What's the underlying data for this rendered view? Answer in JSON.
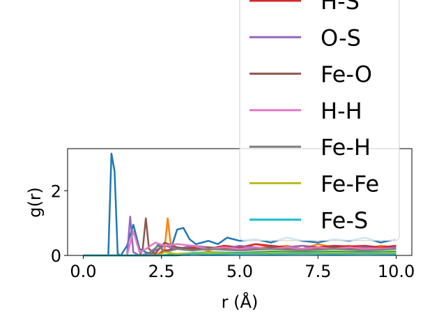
{
  "chart_data": {
    "type": "line",
    "xlabel": "r (Å)",
    "ylabel": "g(r)",
    "xlim": [
      -0.5,
      10.5
    ],
    "ylim": [
      0,
      3.3
    ],
    "x_ticks": [
      "0.0",
      "2.5",
      "5.0",
      "7.5",
      "10.0"
    ],
    "y_ticks": [
      "0",
      "2"
    ],
    "legend_position": "upper-right",
    "grid": false,
    "series": [
      {
        "name": "",
        "color": "#1f77b4",
        "x": [
          0.0,
          0.5,
          0.8,
          0.9,
          1.0,
          1.1,
          1.2,
          1.4,
          1.6,
          1.8,
          2.0,
          2.2,
          2.4,
          2.6,
          2.8,
          3.0,
          3.2,
          3.4,
          3.6,
          3.8,
          4.0,
          4.3,
          4.6,
          5.0,
          5.5,
          6.0,
          6.5,
          7.0,
          7.5,
          8.0,
          8.5,
          9.0,
          9.5,
          10.0
        ],
        "y": [
          0,
          0,
          0,
          3.15,
          2.6,
          0.05,
          0,
          0.3,
          0.95,
          0.2,
          0.1,
          0.05,
          0.35,
          0.1,
          0.2,
          0.8,
          0.85,
          0.5,
          0.35,
          0.4,
          0.45,
          0.35,
          0.55,
          0.45,
          0.5,
          0.4,
          0.55,
          0.45,
          0.4,
          0.5,
          0.45,
          0.55,
          0.4,
          0.5
        ]
      },
      {
        "name": "",
        "color": "#ff7f0e",
        "x": [
          0.0,
          2.0,
          2.4,
          2.6,
          2.7,
          2.8,
          3.0,
          3.5,
          4.0,
          4.5,
          5.0,
          5.5,
          6.0,
          6.5,
          7.0,
          7.5,
          8.0,
          8.5,
          9.0,
          9.5,
          10.0
        ],
        "y": [
          0,
          0,
          0.05,
          0.2,
          1.15,
          0.3,
          0.2,
          0.25,
          0.15,
          0.3,
          0.2,
          0.35,
          0.25,
          0.3,
          0.2,
          0.35,
          0.25,
          0.3,
          0.2,
          0.3,
          0.25
        ]
      },
      {
        "name": "",
        "color": "#2ca02c",
        "x": [
          0.0,
          2.5,
          3.0,
          4.0,
          5.0,
          6.0,
          7.0,
          8.0,
          9.0,
          10.0
        ],
        "y": [
          0,
          0,
          0.05,
          0.1,
          0.08,
          0.12,
          0.1,
          0.12,
          0.1,
          0.12
        ]
      },
      {
        "name": "H-S",
        "color": "#d62728",
        "x": [
          0.0,
          2.4,
          2.6,
          3.0,
          3.5,
          4.0,
          4.5,
          5.0,
          5.5,
          6.0,
          6.5,
          7.0,
          7.5,
          8.0,
          8.5,
          9.0,
          9.5,
          10.0
        ],
        "y": [
          0,
          0,
          0.15,
          0.2,
          0.25,
          0.2,
          0.3,
          0.25,
          0.35,
          0.3,
          0.25,
          0.3,
          0.25,
          0.3,
          0.28,
          0.3,
          0.25,
          0.3
        ]
      },
      {
        "name": "O-S",
        "color": "#9467bd",
        "x": [
          0.0,
          1.4,
          1.5,
          1.6,
          1.8,
          2.2,
          2.6,
          3.0,
          3.5,
          4.0,
          4.5,
          5.0,
          5.5,
          6.0,
          6.5,
          7.0,
          7.5,
          8.0,
          8.5,
          9.0,
          9.5,
          10.0
        ],
        "y": [
          0,
          0,
          1.2,
          0.1,
          0,
          0.1,
          0.3,
          0.2,
          0.3,
          0.25,
          0.2,
          0.3,
          0.25,
          0.2,
          0.25,
          0.3,
          0.2,
          0.25,
          0.2,
          0.25,
          0.2,
          0.25
        ]
      },
      {
        "name": "Fe-O",
        "color": "#8c564b",
        "x": [
          0.0,
          1.8,
          1.9,
          2.0,
          2.1,
          2.3,
          2.6,
          3.0,
          3.5,
          4.0,
          5.0,
          6.0,
          7.0,
          8.0,
          9.0,
          10.0
        ],
        "y": [
          0,
          0,
          0.2,
          1.15,
          0.2,
          0.05,
          0.4,
          0.25,
          0.2,
          0.25,
          0.2,
          0.25,
          0.2,
          0.25,
          0.2,
          0.2
        ]
      },
      {
        "name": "H-H",
        "color": "#e377c2",
        "x": [
          0.0,
          1.4,
          1.6,
          1.8,
          2.0,
          2.3,
          2.6,
          3.0,
          3.5,
          4.0,
          4.5,
          5.0,
          5.5,
          6.0,
          6.5,
          7.0,
          7.5,
          8.0,
          8.5,
          9.0,
          9.5,
          10.0
        ],
        "y": [
          0,
          0,
          0.75,
          0.1,
          0.2,
          0.4,
          0.3,
          0.35,
          0.3,
          0.2,
          0.25,
          0.2,
          0.25,
          0.2,
          0.25,
          0.2,
          0.25,
          0.2,
          0.25,
          0.2,
          0.22,
          0.2
        ]
      },
      {
        "name": "Fe-H",
        "color": "#7f7f7f",
        "x": [
          0.0,
          2.0,
          2.4,
          2.6,
          3.0,
          3.5,
          4.0,
          5.0,
          6.0,
          7.0,
          8.0,
          9.0,
          10.0
        ],
        "y": [
          0,
          0,
          0.3,
          0.1,
          0.2,
          0.15,
          0.2,
          0.15,
          0.2,
          0.15,
          0.2,
          0.15,
          0.2
        ]
      },
      {
        "name": "Fe-Fe",
        "color": "#bcbd22",
        "x": [
          0.0,
          2.4,
          2.6,
          3.0,
          4.0,
          5.0,
          6.0,
          7.0,
          8.0,
          9.0,
          10.0
        ],
        "y": [
          0,
          0,
          0.1,
          0.05,
          0.08,
          0.06,
          0.08,
          0.07,
          0.08,
          0.07,
          0.08
        ]
      },
      {
        "name": "Fe-S",
        "color": "#17becf",
        "x": [
          0.0,
          3.0,
          3.5,
          4.0,
          5.0,
          6.0,
          7.0,
          8.0,
          9.0,
          10.0
        ],
        "y": [
          0,
          0,
          0.05,
          0.03,
          0.05,
          0.04,
          0.05,
          0.04,
          0.05,
          0.04
        ]
      }
    ]
  }
}
